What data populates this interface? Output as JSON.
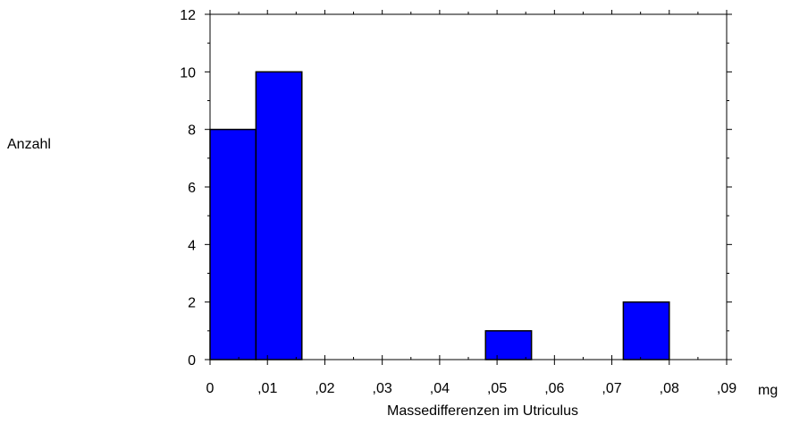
{
  "chart_data": {
    "type": "bar",
    "subtype": "histogram",
    "title": "",
    "xlabel": "Massedifferenzen im Utriculus",
    "x_unit": "mg",
    "ylabel": "Anzahl",
    "xlim": [
      0,
      0.09
    ],
    "ylim": [
      0,
      12
    ],
    "x_ticks": [
      0,
      0.01,
      0.02,
      0.03,
      0.04,
      0.05,
      0.06,
      0.07,
      0.08,
      0.09
    ],
    "x_tick_labels": [
      "0",
      ",01",
      ",02",
      ",03",
      ",04",
      ",05",
      ",06",
      ",07",
      ",08",
      ",09"
    ],
    "y_ticks": [
      0,
      2,
      4,
      6,
      8,
      10,
      12
    ],
    "y_tick_labels": [
      "0",
      "2",
      "4",
      "6",
      "8",
      "10",
      "12"
    ],
    "bins": [
      {
        "x0": 0.0,
        "x1": 0.008,
        "value": 8
      },
      {
        "x0": 0.008,
        "x1": 0.016,
        "value": 10
      },
      {
        "x0": 0.048,
        "x1": 0.056,
        "value": 1
      },
      {
        "x0": 0.072,
        "x1": 0.08,
        "value": 2
      }
    ],
    "bar_color": "#0000ff",
    "grid": false,
    "legend": "none"
  }
}
